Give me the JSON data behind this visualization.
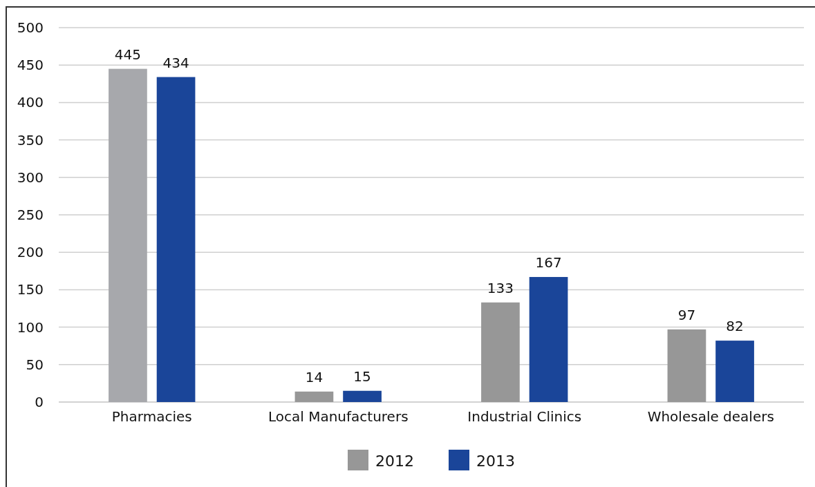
{
  "chart_data": {
    "type": "bar",
    "categories": [
      "Pharmacies",
      "Local Manufacturers",
      "Industrial Clinics",
      "Wholesale dealers"
    ],
    "series": [
      {
        "name": "2012",
        "color": "#979797",
        "colors": [
          "#a7a8ac",
          "#979797",
          "#979797",
          "#979797"
        ],
        "values": [
          445,
          14,
          133,
          97
        ]
      },
      {
        "name": "2013",
        "color": "#1a4599",
        "values": [
          434,
          15,
          167,
          82
        ]
      }
    ],
    "ylim": [
      0,
      500
    ],
    "yticks": [
      0,
      50,
      100,
      150,
      200,
      250,
      300,
      350,
      400,
      450,
      500
    ],
    "grid": "y",
    "legend": "bottom",
    "data_labels": true
  }
}
